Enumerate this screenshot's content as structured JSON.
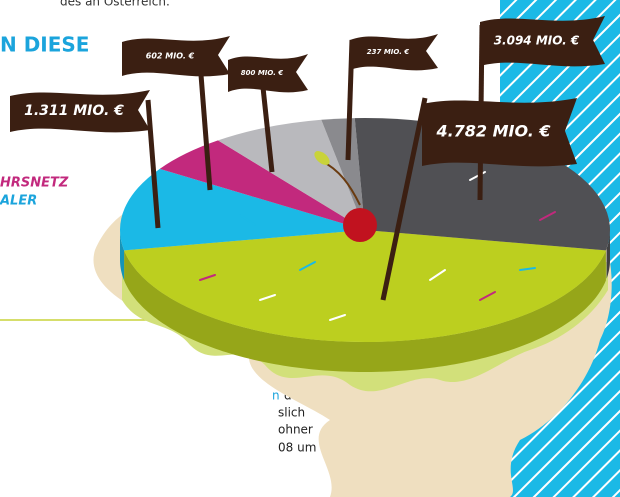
{
  "page_text": {
    "top_line": "des an Österreich.",
    "heading": "N DIESE",
    "sub_line_1": "HRSNETZ",
    "sub_line_2": "ALER",
    "body_highlight": "n",
    "body_lines": [
      "der",
      "slich",
      "ohner",
      "08 um"
    ]
  },
  "chart_data": {
    "type": "pie",
    "values": [
      1311,
      602,
      800,
      237,
      3094,
      4782
    ],
    "value_labels": [
      "1.311 MIO. €",
      "602 MIO. €",
      "800 MIO. €",
      "237 MIO. €",
      "3.094 MIO. €",
      "4.782 MIO. €"
    ],
    "colors": [
      "#1bb9e6",
      "#c2297d",
      "#b9b9bd",
      "#8a8a8e",
      "#505054",
      "#bccf1f"
    ]
  }
}
